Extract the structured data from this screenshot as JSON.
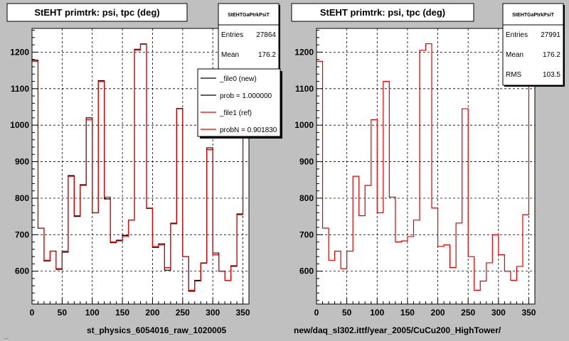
{
  "chart_data": [
    {
      "type": "histogram",
      "title": "StEHT primtrk: psi, tpc (deg)",
      "xlabel": "st_physics_6054016_raw_1020005",
      "xlim": [
        0,
        360
      ],
      "ylim": [
        510,
        1265
      ],
      "xticks": [
        0,
        50,
        100,
        150,
        200,
        250,
        300,
        350
      ],
      "yticks": [
        600,
        700,
        800,
        900,
        1000,
        1100,
        1200
      ],
      "grid": true,
      "bin_edges": [
        0,
        10,
        20,
        30,
        40,
        50,
        60,
        70,
        80,
        90,
        100,
        110,
        120,
        130,
        140,
        150,
        160,
        170,
        180,
        190,
        200,
        210,
        220,
        230,
        240,
        250,
        260,
        270,
        280,
        290,
        300,
        310,
        320,
        330,
        340,
        350,
        360
      ],
      "series": [
        {
          "name": "_file0 (new)",
          "color": "#000000",
          "values": [
            1178,
            718,
            628,
            655,
            605,
            652,
            862,
            750,
            837,
            1020,
            760,
            1122,
            798,
            678,
            685,
            698,
            740,
            1208,
            1222,
            772,
            665,
            675,
            603,
            730,
            1046,
            640,
            545,
            575,
            622,
            938,
            650,
            600,
            575,
            615,
            757,
            1185
          ]
        },
        {
          "name": "_file1 (ref)",
          "color": "#e00000",
          "values": [
            1175,
            718,
            630,
            655,
            607,
            655,
            860,
            752,
            835,
            1015,
            760,
            1120,
            803,
            680,
            683,
            695,
            740,
            1205,
            1223,
            773,
            668,
            672,
            610,
            732,
            1045,
            640,
            548,
            573,
            623,
            933,
            645,
            600,
            575,
            613,
            755,
            1183
          ]
        }
      ],
      "stats": {
        "name": "StEHTGaPtrkPsiT",
        "entries_label": "Entries",
        "entries": "27864",
        "mean_label": "Mean",
        "mean": "176.2"
      },
      "legend": {
        "placement": "top-right",
        "entries": [
          "_file0 (new)",
          "prob = 1.000000",
          "_file1 (ref)",
          "probN = 0.901830"
        ]
      }
    },
    {
      "type": "histogram",
      "title": "StEHT primtrk: psi, tpc (deg)",
      "xlabel": "new/daq_sl302.ittf/year_2005/CuCu200_HighTower/",
      "xlim": [
        0,
        360
      ],
      "ylim": [
        510,
        1265
      ],
      "xticks": [
        0,
        50,
        100,
        150,
        200,
        250,
        300,
        350
      ],
      "yticks": [
        600,
        700,
        800,
        900,
        1000,
        1100,
        1200
      ],
      "grid": true,
      "bin_edges": [
        0,
        10,
        20,
        30,
        40,
        50,
        60,
        70,
        80,
        90,
        100,
        110,
        120,
        130,
        140,
        150,
        160,
        170,
        180,
        190,
        200,
        210,
        220,
        230,
        240,
        250,
        260,
        270,
        280,
        290,
        300,
        310,
        320,
        330,
        340,
        350,
        360
      ],
      "series": [
        {
          "name": "",
          "color": "#e00000",
          "values": [
            1175,
            718,
            630,
            655,
            607,
            655,
            860,
            752,
            835,
            1015,
            760,
            1120,
            803,
            680,
            683,
            695,
            740,
            1205,
            1223,
            773,
            668,
            672,
            610,
            732,
            1045,
            640,
            548,
            573,
            623,
            700,
            645,
            600,
            575,
            613,
            755,
            1183
          ]
        }
      ],
      "stats": {
        "name": "StEHTGaPtrkPsiT",
        "entries_label": "Entries",
        "entries": "27991",
        "mean_label": "Mean",
        "mean": "176.2",
        "rms_label": "RMS",
        "rms": "103.5"
      }
    }
  ],
  "footer_text": "..."
}
